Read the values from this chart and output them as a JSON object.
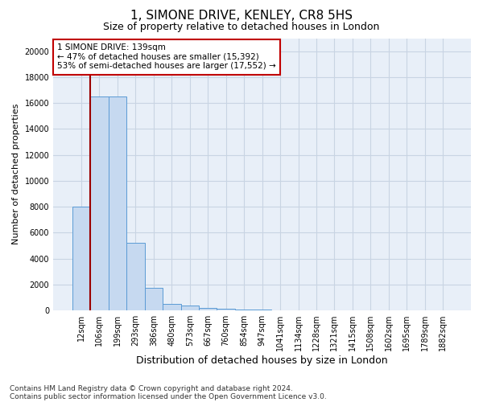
{
  "title1": "1, SIMONE DRIVE, KENLEY, CR8 5HS",
  "title2": "Size of property relative to detached houses in London",
  "xlabel": "Distribution of detached houses by size in London",
  "ylabel": "Number of detached properties",
  "categories": [
    "12sqm",
    "106sqm",
    "199sqm",
    "293sqm",
    "386sqm",
    "480sqm",
    "573sqm",
    "667sqm",
    "760sqm",
    "854sqm",
    "947sqm",
    "1041sqm",
    "1134sqm",
    "1228sqm",
    "1321sqm",
    "1415sqm",
    "1508sqm",
    "1602sqm",
    "1695sqm",
    "1789sqm",
    "1882sqm"
  ],
  "values": [
    8000,
    16500,
    16500,
    5200,
    1750,
    500,
    350,
    220,
    150,
    80,
    55,
    35,
    20,
    15,
    10,
    7,
    5,
    4,
    3,
    2,
    1
  ],
  "bar_color": "#c6d9f0",
  "bar_edge_color": "#5b9bd5",
  "vline_x_index": 1,
  "vline_color": "#9b0000",
  "annotation_text": "1 SIMONE DRIVE: 139sqm\n← 47% of detached houses are smaller (15,392)\n53% of semi-detached houses are larger (17,552) →",
  "annotation_box_color": "#ffffff",
  "annotation_box_edge": "#c00000",
  "ylim": [
    0,
    21000
  ],
  "yticks": [
    0,
    2000,
    4000,
    6000,
    8000,
    10000,
    12000,
    14000,
    16000,
    18000,
    20000
  ],
  "footnote1": "Contains HM Land Registry data © Crown copyright and database right 2024.",
  "footnote2": "Contains public sector information licensed under the Open Government Licence v3.0.",
  "bg_color": "#ffffff",
  "grid_color": "#c8d4e3",
  "title1_fontsize": 11,
  "title2_fontsize": 9,
  "xlabel_fontsize": 9,
  "ylabel_fontsize": 8,
  "tick_fontsize": 7,
  "annot_fontsize": 7.5,
  "footnote_fontsize": 6.5
}
